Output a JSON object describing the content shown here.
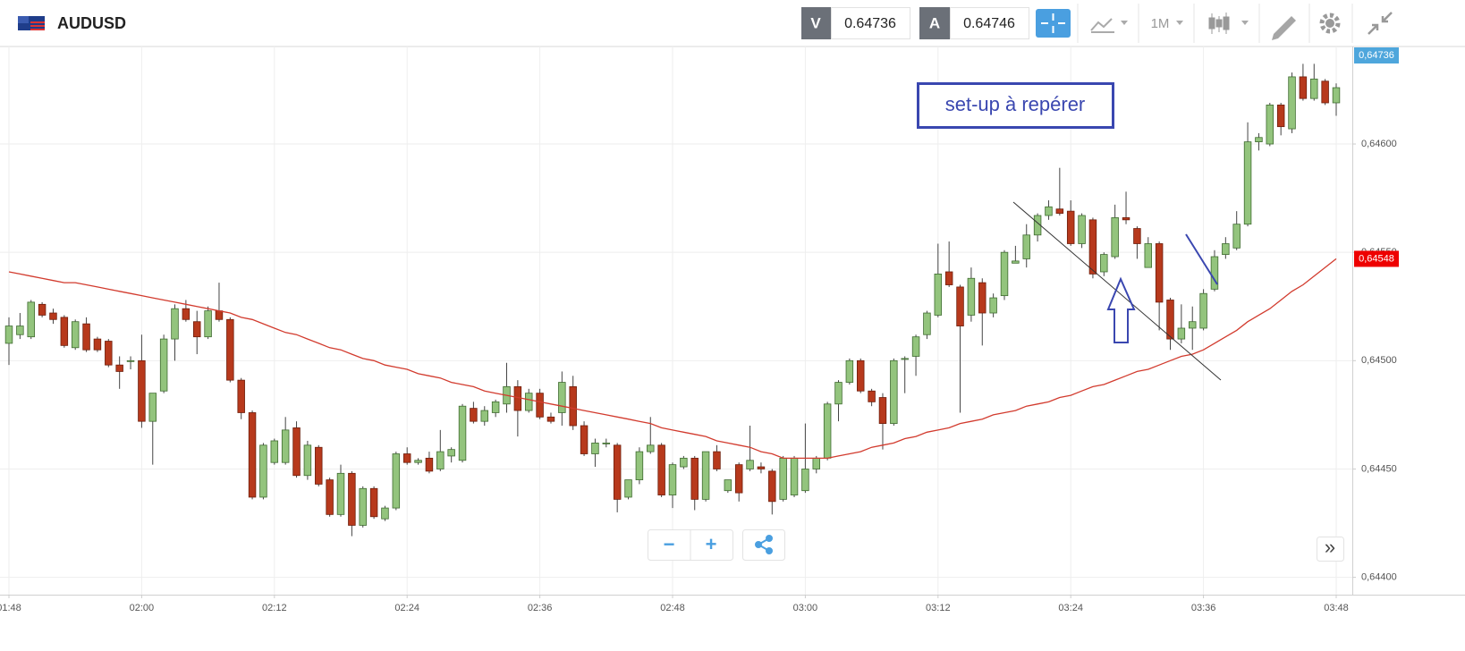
{
  "toolbar": {
    "symbol": "AUDUSD",
    "bid_label": "V",
    "bid": 0.64736,
    "ask_label": "A",
    "ask": 0.64746,
    "timeframe": "1M"
  },
  "annotation": "set-up à repérer",
  "controls": {
    "zoom_out": "−",
    "zoom_in": "+",
    "scroll_end": "»"
  },
  "chart_data": {
    "type": "candlestick",
    "categories": [
      "01:48",
      null,
      null,
      null,
      null,
      null,
      null,
      null,
      null,
      null,
      null,
      null,
      "02:00",
      null,
      null,
      null,
      null,
      null,
      null,
      null,
      null,
      null,
      null,
      null,
      "02:12",
      null,
      null,
      null,
      null,
      null,
      null,
      null,
      null,
      null,
      null,
      null,
      "02:24",
      null,
      null,
      null,
      null,
      null,
      null,
      null,
      null,
      null,
      null,
      null,
      "02:36",
      null,
      null,
      null,
      null,
      null,
      null,
      null,
      null,
      null,
      null,
      null,
      "02:48",
      null,
      null,
      null,
      null,
      null,
      null,
      null,
      null,
      null,
      null,
      null,
      "03:00",
      null,
      null,
      null,
      null,
      null,
      null,
      null,
      null,
      null,
      null,
      null,
      "03:12",
      null,
      null,
      null,
      null,
      null,
      null,
      null,
      null,
      null,
      null,
      null,
      "03:24",
      null,
      null,
      null,
      null,
      null,
      null,
      null,
      null,
      null,
      null,
      null,
      "03:36",
      null,
      null,
      null,
      null,
      null,
      null,
      null,
      null,
      null,
      null,
      null,
      "03:48"
    ],
    "open": [
      0.64508,
      0.64512,
      0.64511,
      0.64526,
      0.64522,
      0.6452,
      0.64506,
      0.64517,
      0.6451,
      0.64509,
      0.64498,
      0.645,
      0.645,
      0.64472,
      0.64486,
      0.6451,
      0.64524,
      0.64518,
      0.64511,
      0.64523,
      0.64519,
      0.64491,
      0.64476,
      0.64437,
      0.64453,
      0.64453,
      0.64469,
      0.64447,
      0.6446,
      0.64445,
      0.64429,
      0.64448,
      0.64424,
      0.64441,
      0.64427,
      0.64432,
      0.64457,
      0.64453,
      0.64455,
      0.6445,
      0.64456,
      0.64454,
      0.64478,
      0.64472,
      0.64476,
      0.6448,
      0.64488,
      0.64477,
      0.64485,
      0.64474,
      0.64476,
      0.64488,
      0.6447,
      0.64457,
      0.64462,
      0.64461,
      0.64437,
      0.64445,
      0.64458,
      0.64461,
      0.64438,
      0.64451,
      0.64455,
      0.64436,
      0.64458,
      0.6444,
      0.64452,
      0.6445,
      0.64451,
      0.64449,
      0.64436,
      0.64438,
      0.6444,
      0.6445,
      0.64455,
      0.6448,
      0.6449,
      0.645,
      0.64486,
      0.64483,
      0.64471,
      0.64501,
      0.64502,
      0.64512,
      0.64521,
      0.64541,
      0.64534,
      0.64521,
      0.64536,
      0.64522,
      0.6453,
      0.64545,
      0.64547,
      0.64558,
      0.64567,
      0.6457,
      0.64569,
      0.64554,
      0.64565,
      0.64541,
      0.64548,
      0.64566,
      0.64561,
      0.64543,
      0.64554,
      0.64528,
      0.6451,
      0.64515,
      0.64515,
      0.64533,
      0.64549,
      0.64552,
      0.64563,
      0.64601,
      0.646,
      0.64618,
      0.64607,
      0.64631,
      0.64621,
      0.64629,
      0.64619
    ],
    "high": [
      0.6452,
      0.64522,
      0.64528,
      0.64527,
      0.64524,
      0.64521,
      0.64519,
      0.6452,
      0.64511,
      0.6451,
      0.64502,
      0.64502,
      0.64512,
      0.64485,
      0.64512,
      0.64526,
      0.64528,
      0.64523,
      0.64525,
      0.64536,
      0.6452,
      0.64492,
      0.64477,
      0.64462,
      0.64464,
      0.64474,
      0.64472,
      0.64463,
      0.64461,
      0.64446,
      0.64452,
      0.64449,
      0.64442,
      0.64442,
      0.64433,
      0.64458,
      0.6446,
      0.64455,
      0.64458,
      0.64468,
      0.6446,
      0.6448,
      0.64481,
      0.64479,
      0.64482,
      0.64499,
      0.64491,
      0.64487,
      0.64487,
      0.64476,
      0.64495,
      0.64493,
      0.64472,
      0.64464,
      0.64464,
      0.64462,
      0.64445,
      0.6446,
      0.64474,
      0.64462,
      0.64453,
      0.64456,
      0.64456,
      0.64458,
      0.64461,
      0.64445,
      0.64453,
      0.6447,
      0.64453,
      0.6445,
      0.64456,
      0.64456,
      0.64471,
      0.64456,
      0.64481,
      0.64491,
      0.64501,
      0.64501,
      0.64487,
      0.64485,
      0.64501,
      0.64502,
      0.64512,
      0.64523,
      0.64554,
      0.64555,
      0.64535,
      0.64543,
      0.64538,
      0.64531,
      0.64551,
      0.64553,
      0.64563,
      0.64568,
      0.64574,
      0.64589,
      0.64574,
      0.64568,
      0.64566,
      0.6455,
      0.64572,
      0.64578,
      0.64562,
      0.64557,
      0.64555,
      0.64529,
      0.64526,
      0.64525,
      0.64533,
      0.64551,
      0.64557,
      0.64569,
      0.6461,
      0.64605,
      0.64619,
      0.64619,
      0.64633,
      0.64637,
      0.64637,
      0.6463,
      0.64628
    ],
    "low": [
      0.64498,
      0.6451,
      0.6451,
      0.6452,
      0.64517,
      0.64506,
      0.64505,
      0.64504,
      0.64504,
      0.64497,
      0.64487,
      0.64496,
      0.64469,
      0.64452,
      0.64485,
      0.645,
      0.64518,
      0.64503,
      0.6451,
      0.64518,
      0.6449,
      0.64473,
      0.64436,
      0.64436,
      0.64452,
      0.64452,
      0.64446,
      0.64445,
      0.64442,
      0.64428,
      0.64428,
      0.64419,
      0.64423,
      0.64427,
      0.64426,
      0.64431,
      0.64452,
      0.64452,
      0.64448,
      0.64449,
      0.64453,
      0.64453,
      0.64471,
      0.6447,
      0.64474,
      0.64476,
      0.64465,
      0.64476,
      0.64473,
      0.64471,
      0.6447,
      0.64468,
      0.64456,
      0.64451,
      0.6446,
      0.6443,
      0.64436,
      0.64443,
      0.64457,
      0.64437,
      0.64432,
      0.6445,
      0.64431,
      0.64435,
      0.64449,
      0.64439,
      0.64435,
      0.64449,
      0.64448,
      0.64429,
      0.64435,
      0.64437,
      0.64439,
      0.64448,
      0.64454,
      0.64472,
      0.64489,
      0.64485,
      0.64479,
      0.64459,
      0.6447,
      0.64485,
      0.64493,
      0.6451,
      0.6452,
      0.64534,
      0.64476,
      0.64518,
      0.64507,
      0.6452,
      0.64528,
      0.64545,
      0.64543,
      0.64555,
      0.64565,
      0.64567,
      0.64553,
      0.64552,
      0.64538,
      0.64539,
      0.64547,
      0.64563,
      0.64547,
      0.64543,
      0.64514,
      0.64505,
      0.64508,
      0.64505,
      0.64514,
      0.64532,
      0.64547,
      0.64551,
      0.64562,
      0.64597,
      0.64599,
      0.64604,
      0.64605,
      0.6462,
      0.6462,
      0.64618,
      0.64613
    ],
    "close": [
      0.64516,
      0.64516,
      0.64527,
      0.64521,
      0.64519,
      0.64507,
      0.64518,
      0.64505,
      0.64505,
      0.64498,
      0.64495,
      0.645,
      0.64472,
      0.64485,
      0.6451,
      0.64524,
      0.64519,
      0.64511,
      0.64523,
      0.64519,
      0.64491,
      0.64476,
      0.64437,
      0.64461,
      0.64463,
      0.64468,
      0.64447,
      0.64461,
      0.64443,
      0.64429,
      0.64448,
      0.64424,
      0.64441,
      0.64428,
      0.64432,
      0.64457,
      0.64453,
      0.64454,
      0.64449,
      0.64458,
      0.64459,
      0.64479,
      0.64472,
      0.64477,
      0.64481,
      0.64488,
      0.64477,
      0.64485,
      0.64474,
      0.64472,
      0.6449,
      0.6447,
      0.64457,
      0.64462,
      0.64462,
      0.64436,
      0.64445,
      0.64458,
      0.64461,
      0.64438,
      0.64452,
      0.64455,
      0.64436,
      0.64458,
      0.6445,
      0.64445,
      0.64439,
      0.64454,
      0.6445,
      0.64435,
      0.64455,
      0.64455,
      0.6445,
      0.64455,
      0.6448,
      0.6449,
      0.645,
      0.64486,
      0.64481,
      0.64471,
      0.645,
      0.64501,
      0.64511,
      0.64522,
      0.6454,
      0.64535,
      0.64516,
      0.64538,
      0.64522,
      0.64529,
      0.6455,
      0.64546,
      0.64558,
      0.64567,
      0.64571,
      0.64568,
      0.64554,
      0.64567,
      0.6454,
      0.64549,
      0.64566,
      0.64565,
      0.64554,
      0.64554,
      0.64527,
      0.6451,
      0.64515,
      0.64518,
      0.64531,
      0.64548,
      0.64554,
      0.64563,
      0.64601,
      0.64603,
      0.64618,
      0.64608,
      0.64631,
      0.64621,
      0.6463,
      0.64619,
      0.64626
    ],
    "up_color": "#93c47d",
    "down_color": "#b7391c",
    "line": {
      "color": "#d23b2e",
      "values": [
        0.64541,
        0.6454,
        0.64539,
        0.64538,
        0.64537,
        0.64536,
        0.64536,
        0.64535,
        0.64534,
        0.64533,
        0.64532,
        0.64531,
        0.6453,
        0.64529,
        0.64528,
        0.64527,
        0.64526,
        0.64525,
        0.64524,
        0.64523,
        0.64522,
        0.6452,
        0.64519,
        0.64517,
        0.64515,
        0.64513,
        0.64512,
        0.6451,
        0.64508,
        0.64506,
        0.64505,
        0.64503,
        0.64501,
        0.645,
        0.64498,
        0.64497,
        0.64496,
        0.64494,
        0.64493,
        0.64492,
        0.6449,
        0.64489,
        0.64488,
        0.64486,
        0.64485,
        0.64484,
        0.64483,
        0.64482,
        0.64481,
        0.6448,
        0.64479,
        0.64478,
        0.64477,
        0.64476,
        0.64475,
        0.64474,
        0.64473,
        0.64472,
        0.64471,
        0.64469,
        0.64468,
        0.64467,
        0.64466,
        0.64465,
        0.64463,
        0.64462,
        0.64461,
        0.6446,
        0.64458,
        0.64457,
        0.64455,
        0.64455,
        0.64455,
        0.64455,
        0.64455,
        0.64456,
        0.64457,
        0.64458,
        0.6446,
        0.64461,
        0.64462,
        0.64464,
        0.64465,
        0.64467,
        0.64468,
        0.64469,
        0.64471,
        0.64472,
        0.64473,
        0.64475,
        0.64476,
        0.64477,
        0.64479,
        0.6448,
        0.64481,
        0.64483,
        0.64484,
        0.64486,
        0.64488,
        0.64489,
        0.64491,
        0.64493,
        0.64495,
        0.64496,
        0.64498,
        0.645,
        0.64502,
        0.64503,
        0.64505,
        0.64508,
        0.64511,
        0.64514,
        0.64518,
        0.64521,
        0.64524,
        0.64528,
        0.64532,
        0.64535,
        0.64539,
        0.64543,
        0.64547
      ]
    },
    "ylim": [
      0.64392,
      0.64645
    ],
    "yticks": [
      {
        "value": 0.644,
        "label": "0,64400"
      },
      {
        "value": 0.6445,
        "label": "0,64450"
      },
      {
        "value": 0.645,
        "label": "0,64500"
      },
      {
        "value": 0.6455,
        "label": "0,64550"
      },
      {
        "value": 0.646,
        "label": "0,64600"
      }
    ],
    "grid": true,
    "price_tags": [
      {
        "label": "0,64736",
        "color": "#4ea6dc"
      },
      {
        "label": "0,64548",
        "color": "#ee0000"
      }
    ]
  }
}
